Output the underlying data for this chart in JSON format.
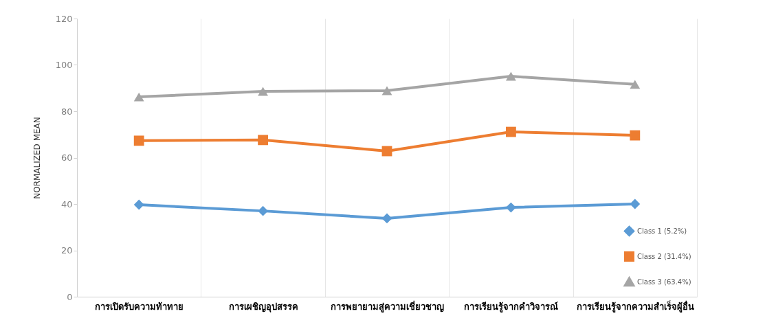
{
  "chart_data": {
    "type": "line",
    "ylabel": "NORMALIZED MEAN",
    "categories": [
      "การเปิดรับความท้าทาย",
      "การเผชิญอุปสรรค",
      "การพยายามสู่ความเชี่ยวชาญ",
      "การเรียนรู้จากคำวิจารณ์",
      "การเรียนรู้จากความสำเร็จผู้อื่น"
    ],
    "series": [
      {
        "name": "Class 1 (5.2%)",
        "color": "#5b9bd5",
        "marker": "diamond",
        "values": [
          39.7,
          37.0,
          33.8,
          38.5,
          40.0
        ]
      },
      {
        "name": "Class 2 (31.4%)",
        "color": "#ed7d31",
        "marker": "square",
        "values": [
          67.3,
          67.6,
          62.8,
          71.1,
          69.6
        ]
      },
      {
        "name": "Class 3 (63.4%)",
        "color": "#a5a5a5",
        "marker": "triangle",
        "values": [
          86.2,
          88.6,
          88.9,
          95.1,
          91.6
        ]
      }
    ],
    "ylim": [
      0,
      120
    ],
    "yticks": [
      0,
      20,
      40,
      60,
      80,
      100,
      120
    ],
    "grid": "x",
    "legend": "bottom right"
  }
}
